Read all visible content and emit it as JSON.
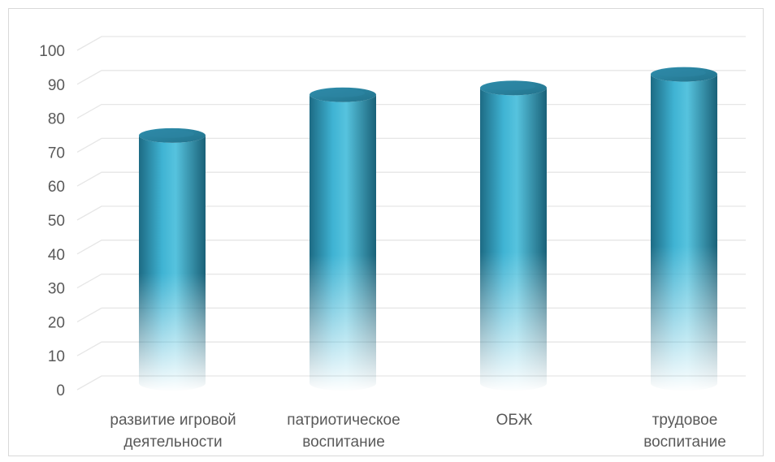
{
  "chart_data": {
    "type": "bar",
    "style": "3d-cylinder",
    "categories": [
      [
        "развитие игровой",
        "деятельности"
      ],
      [
        "патриотическое",
        "воспитание"
      ],
      [
        "ОБЖ"
      ],
      [
        "трудовое",
        "воспитание"
      ]
    ],
    "values": [
      73,
      85,
      87,
      91
    ],
    "ylim": [
      0,
      100
    ],
    "yticks": [
      0,
      10,
      20,
      30,
      40,
      50,
      60,
      70,
      80,
      90,
      100
    ],
    "grid": true,
    "legend": "none",
    "colors": {
      "bar_main": "#2e9cbf",
      "bar_light": "#5cc6e0",
      "bar_dark": "#1f6f88",
      "top_face": "#2a8aa8",
      "grid": "#e6e6e6",
      "text": "#595959"
    }
  }
}
